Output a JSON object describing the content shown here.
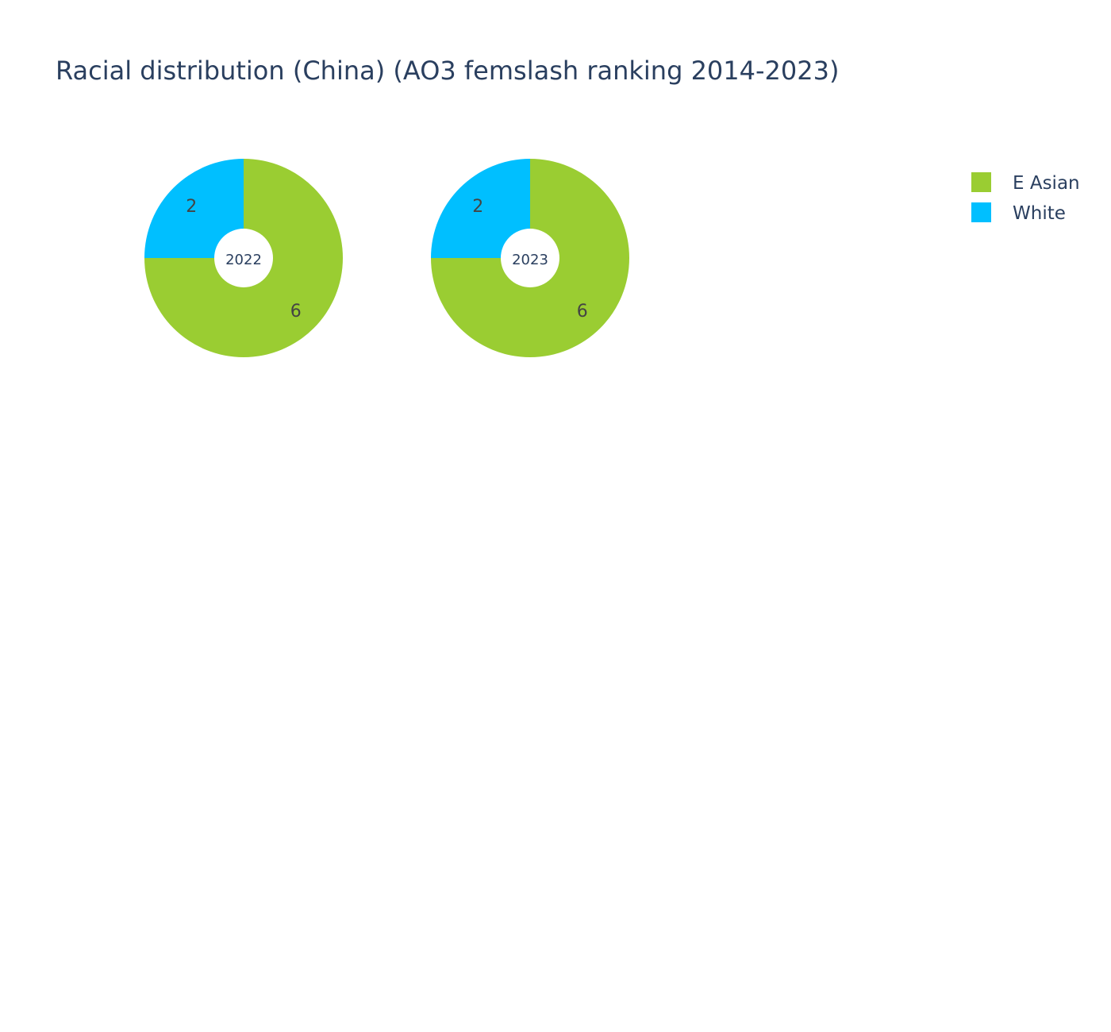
{
  "chart_data": {
    "type": "pie",
    "title": "Racial distribution (China) (AO3 femslash ranking 2014-2023)",
    "hole": true,
    "legend_position": "top-right",
    "categories": [
      "E Asian",
      "White"
    ],
    "colors": {
      "E Asian": "#9acd32",
      "White": "#00bfff"
    },
    "pies": [
      {
        "label": "2022",
        "slices": [
          {
            "name": "E Asian",
            "value": 6
          },
          {
            "name": "White",
            "value": 2
          }
        ]
      },
      {
        "label": "2023",
        "slices": [
          {
            "name": "E Asian",
            "value": 6
          },
          {
            "name": "White",
            "value": 2
          }
        ]
      }
    ]
  }
}
